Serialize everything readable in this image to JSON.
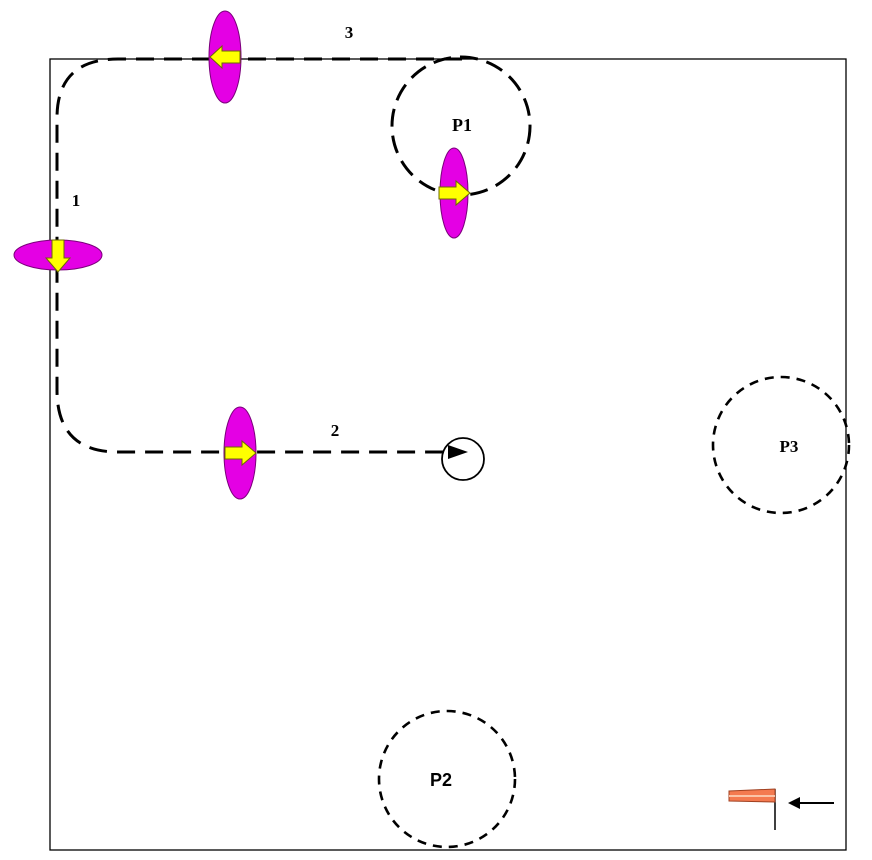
{
  "diagram": {
    "path_labels": {
      "leg1": "1",
      "leg2": "2",
      "leg3": "3"
    },
    "zones": {
      "p1": "P1",
      "p2": "P2",
      "p3": "P3"
    }
  },
  "colors": {
    "marker_fill": "#e400e4",
    "arrow_fill": "#ffff00",
    "wind_flag": "#f47a50",
    "line": "#000000",
    "background": "#ffffff"
  }
}
